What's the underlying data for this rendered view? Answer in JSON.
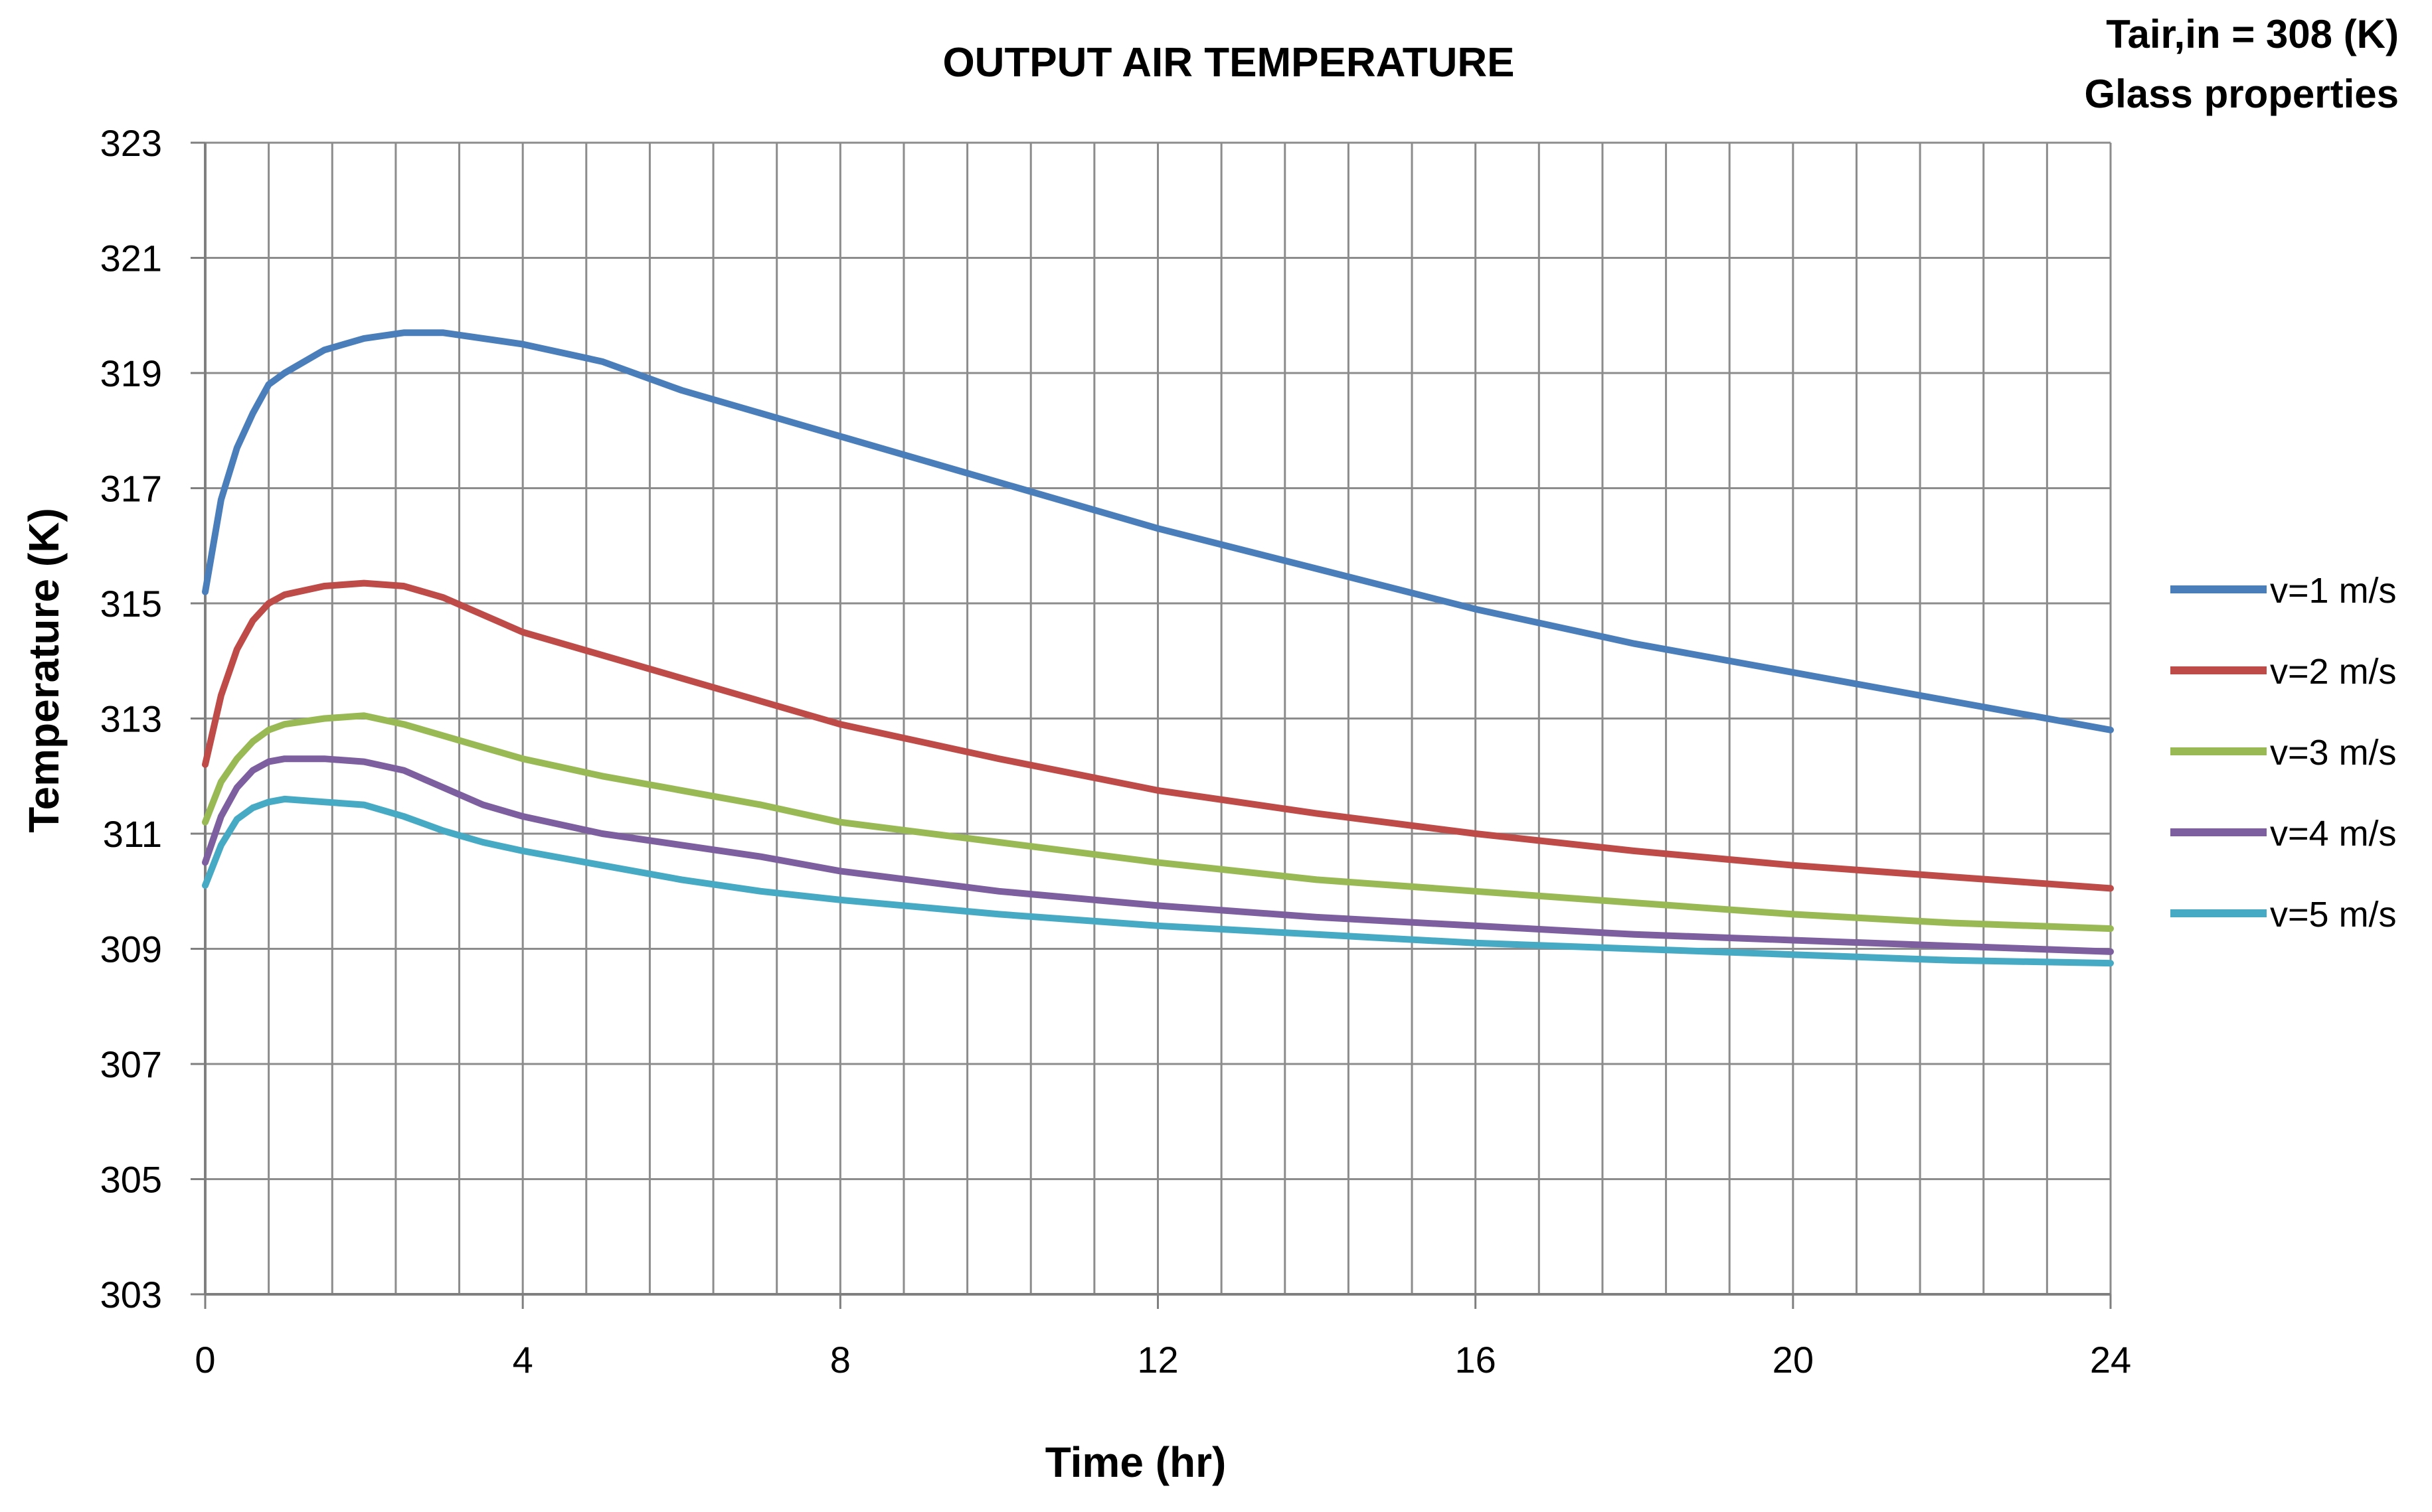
{
  "chart_data": {
    "type": "line",
    "title": "OUTPUT AIR TEMPERATURE",
    "annotations": [
      "Tair,in = 308 (K)",
      "Glass properties"
    ],
    "xlabel": "Time (hr)",
    "ylabel": "Temperature  (K)",
    "xlim": [
      0,
      24
    ],
    "ylim": [
      303,
      323
    ],
    "x_ticks": [
      0,
      4,
      8,
      12,
      16,
      20,
      24
    ],
    "y_ticks": [
      303,
      305,
      307,
      309,
      311,
      313,
      315,
      317,
      319,
      321,
      323
    ],
    "x_minor_step": 0.8,
    "grid": true,
    "legend_position": "right",
    "x": [
      0,
      0.2,
      0.4,
      0.6,
      0.8,
      1.0,
      1.5,
      2.0,
      2.5,
      3.0,
      3.5,
      4.0,
      5.0,
      6.0,
      7.0,
      8.0,
      10.0,
      12.0,
      14.0,
      16.0,
      18.0,
      20.0,
      22.0,
      24.0
    ],
    "series": [
      {
        "name": "v=1 m/s",
        "color": "#4a7ebb",
        "values": [
          315.2,
          316.8,
          317.7,
          318.3,
          318.8,
          319.0,
          319.4,
          319.6,
          319.7,
          319.7,
          319.6,
          319.5,
          319.2,
          318.7,
          318.3,
          317.9,
          317.1,
          316.3,
          315.6,
          314.9,
          314.3,
          313.8,
          313.3,
          312.8
        ]
      },
      {
        "name": "v=2 m/s",
        "color": "#be4b48",
        "values": [
          312.2,
          313.4,
          314.2,
          314.7,
          315.0,
          315.15,
          315.3,
          315.35,
          315.3,
          315.1,
          314.8,
          314.5,
          314.1,
          313.7,
          313.3,
          312.9,
          312.3,
          311.75,
          311.35,
          311.0,
          310.7,
          310.45,
          310.25,
          310.05
        ]
      },
      {
        "name": "v=3 m/s",
        "color": "#98b954",
        "values": [
          311.2,
          311.9,
          312.3,
          312.6,
          312.8,
          312.9,
          313.0,
          313.05,
          312.9,
          312.7,
          312.5,
          312.3,
          312.0,
          311.75,
          311.5,
          311.2,
          310.85,
          310.5,
          310.2,
          310.0,
          309.8,
          309.6,
          309.45,
          309.35
        ]
      },
      {
        "name": "v=4 m/s",
        "color": "#7d5fa0",
        "values": [
          310.5,
          311.3,
          311.8,
          312.1,
          312.25,
          312.3,
          312.3,
          312.25,
          312.1,
          311.8,
          311.5,
          311.3,
          311.0,
          310.8,
          310.6,
          310.35,
          310.0,
          309.75,
          309.55,
          309.4,
          309.25,
          309.15,
          309.05,
          308.95
        ]
      },
      {
        "name": "v=5 m/s",
        "color": "#46aac5",
        "values": [
          310.1,
          310.8,
          311.25,
          311.45,
          311.55,
          311.6,
          311.55,
          311.5,
          311.3,
          311.05,
          310.85,
          310.7,
          310.45,
          310.2,
          310.0,
          309.85,
          309.6,
          309.4,
          309.25,
          309.1,
          309.0,
          308.9,
          308.8,
          308.75
        ]
      }
    ]
  }
}
